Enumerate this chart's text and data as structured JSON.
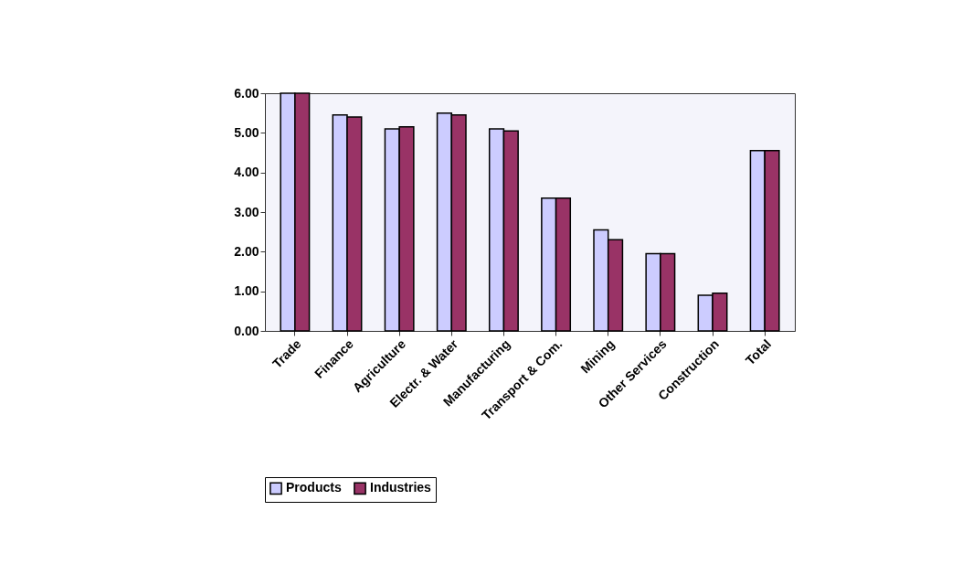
{
  "chart_data": {
    "type": "bar",
    "categories": [
      "Trade",
      "Finance",
      "Agriculture",
      "Electr. & Water",
      "Manufacturing",
      "Transport & Com.",
      "Mining",
      "Other Services",
      "Construction",
      "Total"
    ],
    "series": [
      {
        "name": "Products",
        "color": "#ccccff",
        "values": [
          6.0,
          5.45,
          5.1,
          5.5,
          5.1,
          3.35,
          2.55,
          1.95,
          0.9,
          4.55
        ]
      },
      {
        "name": "Industries",
        "color": "#993366",
        "values": [
          6.0,
          5.4,
          5.15,
          5.45,
          5.05,
          3.35,
          2.3,
          1.95,
          0.95,
          4.55
        ]
      }
    ],
    "ylim": [
      0,
      6
    ],
    "yticks": [
      {
        "value": 0,
        "label": "0.00"
      },
      {
        "value": 1,
        "label": "1.00"
      },
      {
        "value": 2,
        "label": "2.00"
      },
      {
        "value": 3,
        "label": "3.00"
      },
      {
        "value": 4,
        "label": "4.00"
      },
      {
        "value": 5,
        "label": "5.00"
      },
      {
        "value": 6,
        "label": "6.00"
      }
    ],
    "grid": false,
    "legend": "bottom"
  }
}
